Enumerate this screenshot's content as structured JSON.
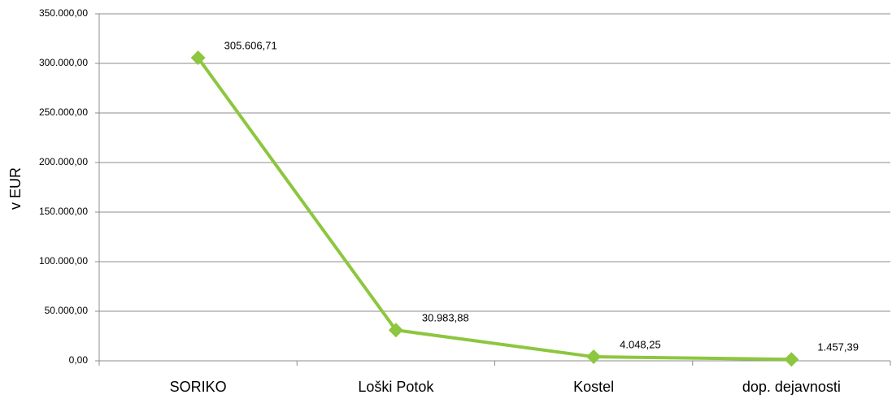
{
  "chart_data": {
    "type": "line",
    "y_label": "v EUR",
    "categories": [
      "SORIKO",
      "Loški Potok",
      "Kostel",
      "dop. dejavnosti"
    ],
    "values": [
      305606.71,
      30983.88,
      4048.25,
      1457.39
    ],
    "value_labels": [
      "305.606,71",
      "30.983,88",
      "4.048,25",
      "1.457,39"
    ],
    "color": "#8dc63f",
    "ylim": [
      0,
      350000
    ],
    "yticks": [
      {
        "value": 0,
        "label": "0,00"
      },
      {
        "value": 50000,
        "label": "50.000,00"
      },
      {
        "value": 100000,
        "label": "100.000,00"
      },
      {
        "value": 150000,
        "label": "150.000,00"
      },
      {
        "value": 200000,
        "label": "200.000,00"
      },
      {
        "value": 250000,
        "label": "250.000,00"
      },
      {
        "value": 300000,
        "label": "300.000,00"
      },
      {
        "value": 350000,
        "label": "350.000,00"
      }
    ],
    "grid": true
  }
}
